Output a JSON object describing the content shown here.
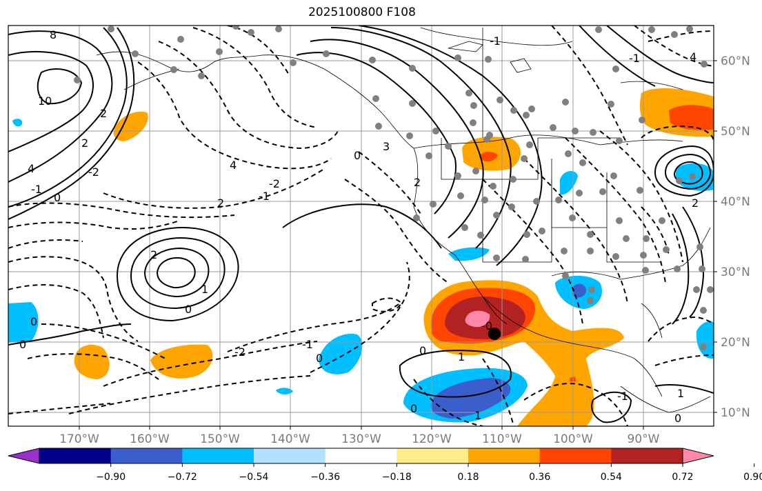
{
  "title": "2025100800 F108",
  "latitude_labels": [
    "60°N",
    "50°N",
    "40°N",
    "30°N",
    "20°N",
    "10°N"
  ],
  "longitude_labels": [
    "170°W",
    "160°W",
    "150°W",
    "140°W",
    "130°W",
    "120°W",
    "110°W",
    "100°W",
    "90°W"
  ],
  "colorbar": {
    "ticks": [
      "−0.90",
      "−0.72",
      "−0.54",
      "−0.36",
      "−0.18",
      "0.18",
      "0.36",
      "0.54",
      "0.72",
      "0.90"
    ],
    "colors": [
      "#9932cc",
      "#00008b",
      "#3a5fcd",
      "#00bfff",
      "#b0e2ff",
      "#ffffff",
      "#ffec8b",
      "#ffa500",
      "#ff4500",
      "#b22222",
      "#ff88aa"
    ]
  },
  "contour_labels": [
    "8",
    "10",
    "4",
    "2",
    "2",
    "0",
    "-1",
    "-2",
    "4",
    "-2",
    "-1",
    "2",
    "0",
    "3",
    "2",
    "0",
    "2",
    "1",
    "0",
    "-2",
    "-1",
    "0",
    "0",
    "-0",
    "1",
    "0",
    "1",
    "-1",
    "1",
    "0",
    "4",
    "-1",
    "2",
    "0",
    "-1"
  ]
}
